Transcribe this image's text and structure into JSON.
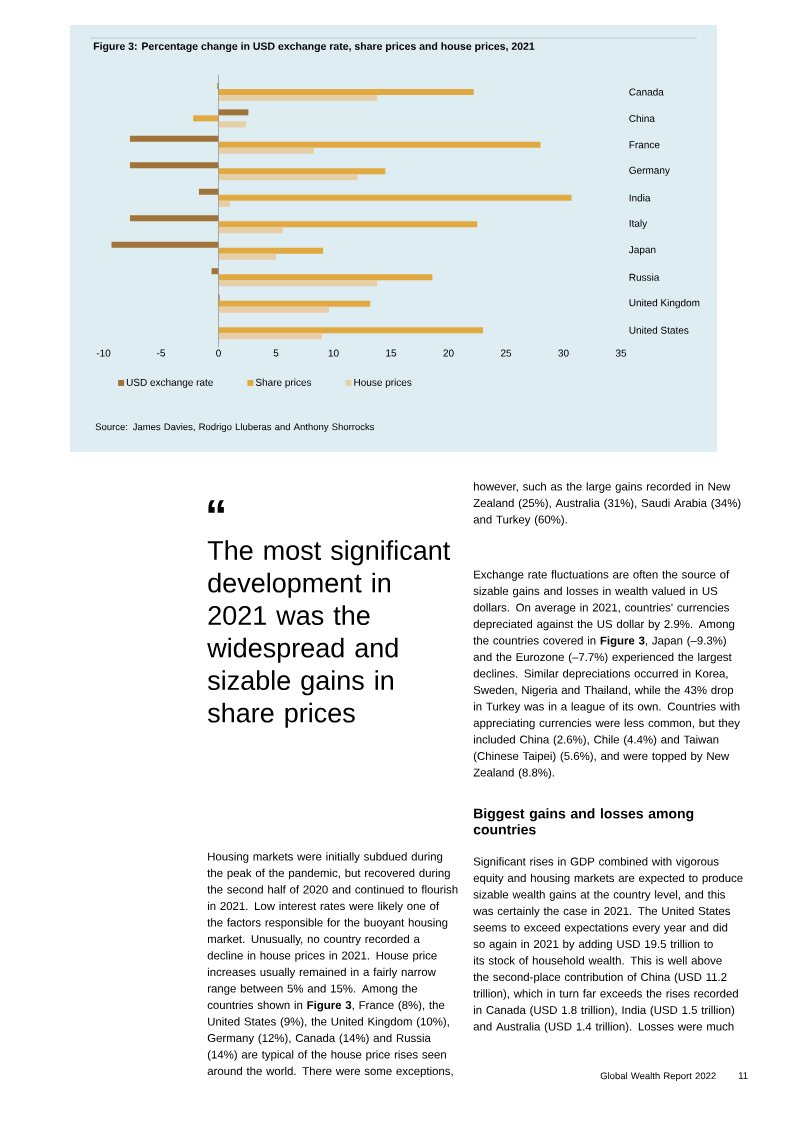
{
  "chart_data": {
    "type": "bar",
    "orientation": "horizontal",
    "title": "Figure 3: Percentage change in USD exchange rate, share prices and house prices, 2021",
    "categories": [
      "Canada",
      "China",
      "France",
      "Germany",
      "India",
      "Italy",
      "Japan",
      "Russia",
      "United Kingdom",
      "United States"
    ],
    "series": [
      {
        "name": "USD exchange rate",
        "color": "#a0733a",
        "values": [
          -0.1,
          2.6,
          -7.7,
          -7.7,
          -1.7,
          -7.7,
          -9.3,
          -0.6,
          0.1,
          0
        ]
      },
      {
        "name": "Share prices",
        "color": "#e2a940",
        "values": [
          22.2,
          -2.2,
          28.0,
          14.5,
          30.7,
          22.5,
          9.1,
          18.6,
          13.2,
          23.0
        ]
      },
      {
        "name": "House prices",
        "color": "#e6cfa7",
        "values": [
          13.8,
          2.4,
          8.3,
          12.1,
          1.0,
          5.6,
          5.0,
          13.8,
          9.6,
          9.0
        ]
      }
    ],
    "xlim": [
      -10,
      35
    ],
    "xticks": [
      -10,
      -5,
      0,
      5,
      10,
      15,
      20,
      25,
      30,
      35
    ],
    "legend": "bottom",
    "annotations": [
      "Source: James Davies, Rodrigo Lluberas and Anthony Shorrocks",
      "“",
      "The most significant development in 2021 was the widespread and sizable gains in share prices",
      "Housing markets were initially subdued during the peak of the pandemic, but recovered during the second half of 2020 and continued to flourish in 2021. Low interest rates were likely one of the factors responsible for the buoyant housing market. Unusually, no country recorded a decline in house prices in 2021. House price increases usually remained in a fairly narrow range between 5% and 15%. Among the countries shown in **Figure 3**, France (8%), the United States (9%), the United Kingdom (10%), Germany (12%), Canada (14%) and Russia (14%) are typical of the house price rises seen around the world. There were some exceptions,",
      "however, such as the large gains recorded in New Zealand (25%), Australia (31%), Saudi Arabia (34%) and Turkey (60%).",
      "Exchange rate fluctuations are often the source of sizable gains and losses in wealth valued in US dollars. On average in 2021, countries' currencies depreciated against the US dollar by 2.9%. Among the countries covered in **Figure 3**, Japan (–9.3%) and the Eurozone (–7.7%) experienced the largest declines. Similar depreciations occurred in Korea, Sweden, Nigeria and Thailand, while the 43% drop in Turkey was in a league of its own. Countries with appreciating currencies were less common, but they included China (2.6%), Chile (4.4%) and Taiwan (Chinese Taipei) (5.6%), and were topped by New Zealand (8.8%).",
      "Biggest gains and losses among countries",
      "Significant rises in GDP combined with vigorous equity and housing markets are expected to produce sizable wealth gains at the country level, and this was certainly the case in 2021. The United States seems to exceed expectations every year and did so again in 2021 by adding USD 19.5 trillion to its stock of household wealth. This is well above the second-place contribution of China (USD 11.2 trillion), which in turn far exceeds the rises recorded in Canada (USD 1.8 trillion), India (USD 1.5 trillion) and Australia (USD 1.4 trillion). Losses were much",
      "Global Wealth Report 2022",
      "11"
    ]
  }
}
